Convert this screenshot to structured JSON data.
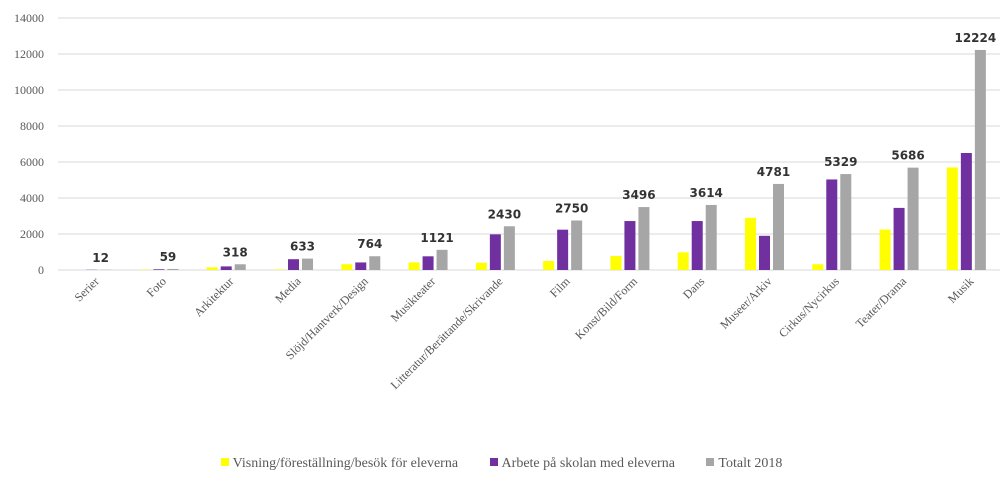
{
  "chart_data": {
    "type": "bar",
    "categories": [
      "Serier",
      "Foto",
      "Arkitektur",
      "Media",
      "Slöjd/Hantverk/Design",
      "Musikteater",
      "Litteratur/Berättande/Skrivande",
      "Film",
      "Konst/Bild/Form",
      "Dans",
      "Museer/Arkiv",
      "Cirkus/Nycirkus",
      "Teater/Drama",
      "Musik"
    ],
    "series": [
      {
        "name": "Visning/föreställning/besök för eleverna",
        "color": "#FFFF00",
        "values": [
          0,
          20,
          150,
          30,
          320,
          420,
          400,
          500,
          780,
          980,
          2900,
          320,
          2250,
          5700
        ]
      },
      {
        "name": "Arbete på skolan med eleverna",
        "color": "#7030A0",
        "values": [
          12,
          40,
          200,
          600,
          420,
          760,
          1980,
          2240,
          2720,
          2720,
          1900,
          5030,
          3450,
          6500
        ]
      },
      {
        "name": "Totalt 2018",
        "color": "#A6A6A6",
        "values": [
          12,
          59,
          318,
          633,
          764,
          1121,
          2430,
          2750,
          3496,
          3614,
          4781,
          5329,
          5686,
          12224
        ]
      }
    ],
    "data_labels": [
      "12",
      "59",
      "318",
      "633",
      "764",
      "1121",
      "2430",
      "2750",
      "3496",
      "3614",
      "4781",
      "5329",
      "5686",
      "12224"
    ],
    "yticks": [
      "0",
      "2000",
      "4000",
      "6000",
      "8000",
      "10000",
      "12000",
      "14000"
    ],
    "ylim": [
      0,
      14000
    ],
    "title": "",
    "xlabel": "",
    "ylabel": "",
    "grid": true,
    "legend_position": "bottom"
  }
}
